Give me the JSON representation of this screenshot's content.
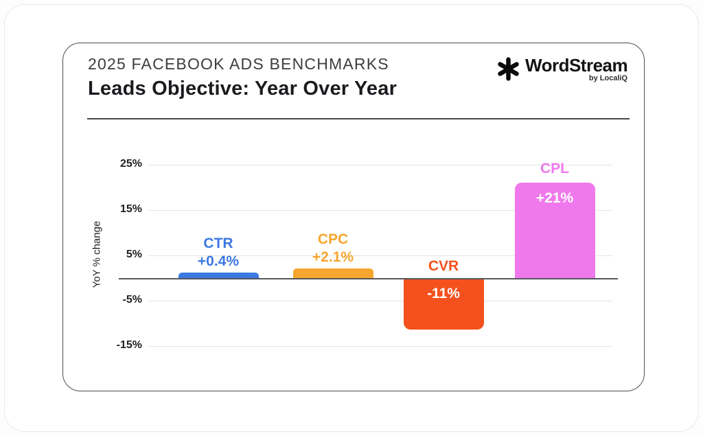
{
  "header": {
    "kicker": "2025 FACEBOOK ADS BENCHMARKS",
    "title": "Leads Objective: Year Over Year"
  },
  "logo": {
    "name": "WordStream",
    "byline": "by LocaliQ",
    "mark": "asterisk-icon",
    "mark_color": "#0b0b0b"
  },
  "chart_data": {
    "type": "bar",
    "title": "Leads Objective: Year Over Year",
    "xlabel": "",
    "ylabel": "YoY % change",
    "categories": [
      "CTR",
      "CPC",
      "CVR",
      "CPL"
    ],
    "values": [
      0.4,
      2.1,
      -11,
      21
    ],
    "value_labels": [
      "+0.4%",
      "+2.1%",
      "-11%",
      "+21%"
    ],
    "bar_colors": [
      "#3C78E2",
      "#F7A62F",
      "#F4511E",
      "#EF79EC"
    ],
    "inside_label_color": "#ffffff",
    "yticks": [
      {
        "label": "25%",
        "value": 25
      },
      {
        "label": "15%",
        "value": 15
      },
      {
        "label": "5%",
        "value": 5
      },
      {
        "label": "-5%",
        "value": -5
      },
      {
        "label": "-15%",
        "value": -15
      }
    ],
    "ylim": [
      -17,
      27
    ],
    "grid": true,
    "legend": false,
    "baseline": 0
  }
}
